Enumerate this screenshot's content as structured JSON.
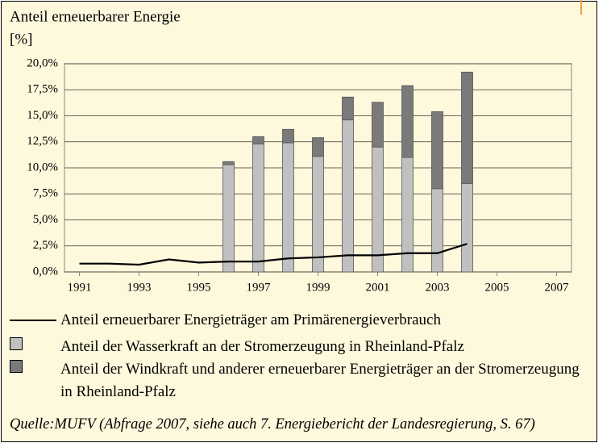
{
  "chart_data": {
    "type": "bar",
    "stacked": true,
    "title": "Anteil erneuerbarer Energie",
    "y_label": "[%]",
    "x": [
      1991,
      1992,
      1993,
      1994,
      1995,
      1996,
      1997,
      1998,
      1999,
      2000,
      2001,
      2002,
      2003,
      2004,
      2005,
      2006,
      2007
    ],
    "xlim": [
      1990.5,
      2007.5
    ],
    "xticks": [
      1991,
      1993,
      1995,
      1997,
      1999,
      2001,
      2003,
      2005,
      2007
    ],
    "ylim": [
      0,
      20
    ],
    "yticks": [
      {
        "value": 0,
        "label": "0,0%"
      },
      {
        "value": 2.5,
        "label": "2,5%"
      },
      {
        "value": 5,
        "label": "5,0%"
      },
      {
        "value": 7.5,
        "label": "7,5%"
      },
      {
        "value": 10,
        "label": "10,0%"
      },
      {
        "value": 12.5,
        "label": "12,5%"
      },
      {
        "value": 15,
        "label": "15,0%"
      },
      {
        "value": 17.5,
        "label": "17,5%"
      },
      {
        "value": 20,
        "label": "20,0%"
      }
    ],
    "grid": true,
    "series": [
      {
        "name": "Anteil erneuerbarer Energieträger am Primärenergieverbrauch",
        "type": "line",
        "color": "#000000",
        "values": [
          0.8,
          0.8,
          0.7,
          1.2,
          0.9,
          1.0,
          1.0,
          1.3,
          1.4,
          1.6,
          1.6,
          1.8,
          1.8,
          2.7,
          null,
          null,
          null
        ]
      },
      {
        "name": "Anteil der Wasserkraft an der Stromerzeugung in Rheinland-Pfalz",
        "type": "bar",
        "color": "#c0c0c0",
        "values": [
          null,
          null,
          null,
          null,
          null,
          10.3,
          12.3,
          12.4,
          11.1,
          14.6,
          12.0,
          11.0,
          8.0,
          8.5,
          null,
          null,
          null
        ]
      },
      {
        "name": "Anteil der Windkraft und anderer erneuerbarer Energieträger an der Stromerzeugung in Rheinland-Pfalz",
        "type": "bar",
        "color": "#7a7a7a",
        "values": [
          null,
          null,
          null,
          null,
          null,
          0.3,
          0.7,
          1.3,
          1.8,
          2.2,
          4.3,
          6.9,
          7.4,
          10.7,
          null,
          null,
          null
        ]
      }
    ],
    "source": "Quelle:MUFV (Abfrage 2007, siehe auch 7. Energiebericht der Landesregierung, S. 67)"
  }
}
